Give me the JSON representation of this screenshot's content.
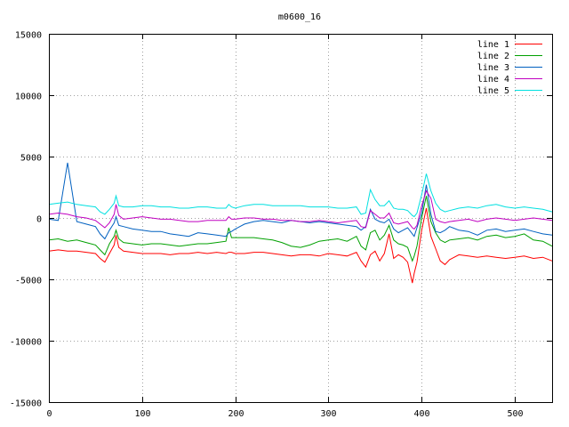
{
  "chart_data": {
    "type": "line",
    "title": "m0600_16",
    "xlabel": "",
    "ylabel": "",
    "xlim": [
      0,
      540
    ],
    "ylim": [
      -15000,
      15000
    ],
    "x_ticks": [
      0,
      100,
      200,
      300,
      400,
      500
    ],
    "y_ticks": [
      -15000,
      -10000,
      -5000,
      0,
      5000,
      10000,
      15000
    ],
    "grid": true,
    "legend_position": "top-right",
    "x": [
      0,
      10,
      20,
      30,
      40,
      50,
      55,
      60,
      65,
      70,
      72,
      75,
      80,
      90,
      100,
      110,
      120,
      130,
      140,
      150,
      160,
      170,
      180,
      190,
      193,
      196,
      200,
      210,
      220,
      230,
      240,
      250,
      260,
      270,
      280,
      290,
      300,
      310,
      320,
      330,
      335,
      340,
      345,
      350,
      355,
      360,
      365,
      370,
      375,
      380,
      385,
      390,
      392,
      395,
      400,
      405,
      410,
      415,
      420,
      425,
      430,
      440,
      450,
      460,
      470,
      480,
      490,
      500,
      510,
      520,
      530,
      540
    ],
    "series": [
      {
        "name": "line 1",
        "color": "#ff0000",
        "values": [
          -2700,
          -2600,
          -2700,
          -2700,
          -2800,
          -2900,
          -3300,
          -3600,
          -2900,
          -2200,
          -1400,
          -2400,
          -2700,
          -2800,
          -2900,
          -2900,
          -2900,
          -3000,
          -2900,
          -2900,
          -2800,
          -2900,
          -2800,
          -2900,
          -2800,
          -2800,
          -2900,
          -2900,
          -2800,
          -2800,
          -2900,
          -3000,
          -3100,
          -3000,
          -3000,
          -3100,
          -2900,
          -3000,
          -3100,
          -2800,
          -3500,
          -4000,
          -3000,
          -2700,
          -3500,
          -2900,
          -1300,
          -3300,
          -3000,
          -3200,
          -3600,
          -5300,
          -4500,
          -3600,
          -1000,
          800,
          -1500,
          -2500,
          -3500,
          -3800,
          -3400,
          -3000,
          -3100,
          -3200,
          -3100,
          -3200,
          -3300,
          -3200,
          -3100,
          -3300,
          -3200,
          -3500
        ]
      },
      {
        "name": "line 2",
        "color": "#00a000",
        "values": [
          -1800,
          -1700,
          -1900,
          -1800,
          -2000,
          -2200,
          -2600,
          -3000,
          -2100,
          -1500,
          -1000,
          -1700,
          -2000,
          -2100,
          -2200,
          -2100,
          -2100,
          -2200,
          -2300,
          -2200,
          -2100,
          -2100,
          -2000,
          -1900,
          -800,
          -1600,
          -1600,
          -1600,
          -1600,
          -1700,
          -1800,
          -2000,
          -2300,
          -2400,
          -2200,
          -1900,
          -1800,
          -1700,
          -1900,
          -1500,
          -2300,
          -2600,
          -1200,
          -1000,
          -1800,
          -1400,
          -600,
          -1800,
          -2100,
          -2200,
          -2400,
          -3500,
          -3100,
          -2300,
          0,
          1800,
          -300,
          -1200,
          -1800,
          -2000,
          -1800,
          -1700,
          -1600,
          -1800,
          -1500,
          -1400,
          -1600,
          -1500,
          -1300,
          -1800,
          -1900,
          -2300
        ]
      },
      {
        "name": "line 3",
        "color": "#0060c0",
        "values": [
          -100,
          -200,
          4500,
          -300,
          -500,
          -700,
          -1300,
          -1700,
          -1000,
          -400,
          100,
          -600,
          -700,
          -900,
          -1000,
          -1100,
          -1100,
          -1300,
          -1400,
          -1500,
          -1200,
          -1300,
          -1400,
          -1500,
          -1200,
          -1100,
          -900,
          -500,
          -300,
          -200,
          -300,
          -400,
          -200,
          -300,
          -400,
          -300,
          -400,
          -500,
          -600,
          -700,
          -1000,
          -700,
          700,
          -100,
          -300,
          -400,
          -100,
          -900,
          -1200,
          -1000,
          -800,
          -1300,
          -1500,
          -800,
          400,
          2700,
          300,
          -1100,
          -1200,
          -1000,
          -700,
          -1000,
          -1100,
          -1400,
          -1000,
          -900,
          -1100,
          -1000,
          -900,
          -1100,
          -1300,
          -1400
        ]
      },
      {
        "name": "line 4",
        "color": "#c000c0",
        "values": [
          300,
          400,
          300,
          100,
          0,
          -200,
          -500,
          -800,
          -400,
          300,
          1100,
          200,
          -100,
          0,
          100,
          0,
          -100,
          -100,
          -200,
          -300,
          -300,
          -200,
          -200,
          -200,
          100,
          -100,
          -100,
          0,
          0,
          -100,
          -100,
          -200,
          -200,
          -300,
          -300,
          -200,
          -300,
          -400,
          -300,
          -200,
          -700,
          -800,
          600,
          300,
          0,
          0,
          400,
          -400,
          -500,
          -400,
          -300,
          -800,
          -900,
          -600,
          1000,
          2200,
          1600,
          -100,
          -300,
          -400,
          -300,
          -200,
          -100,
          -300,
          -100,
          0,
          -100,
          -200,
          -100,
          0,
          -100,
          -200
        ]
      },
      {
        "name": "line 5",
        "color": "#00e0e0",
        "values": [
          1100,
          1200,
          1300,
          1100,
          1000,
          900,
          500,
          300,
          700,
          1200,
          1800,
          1000,
          900,
          900,
          1000,
          1000,
          900,
          900,
          800,
          800,
          900,
          900,
          800,
          800,
          1100,
          900,
          800,
          1000,
          1100,
          1100,
          1000,
          1000,
          1000,
          1000,
          900,
          900,
          900,
          800,
          800,
          900,
          300,
          400,
          2300,
          1500,
          1000,
          1000,
          1400,
          800,
          700,
          700,
          600,
          200,
          100,
          400,
          1900,
          3600,
          2200,
          1200,
          700,
          500,
          600,
          800,
          900,
          800,
          1000,
          1100,
          900,
          800,
          900,
          800,
          700,
          500
        ]
      }
    ]
  }
}
